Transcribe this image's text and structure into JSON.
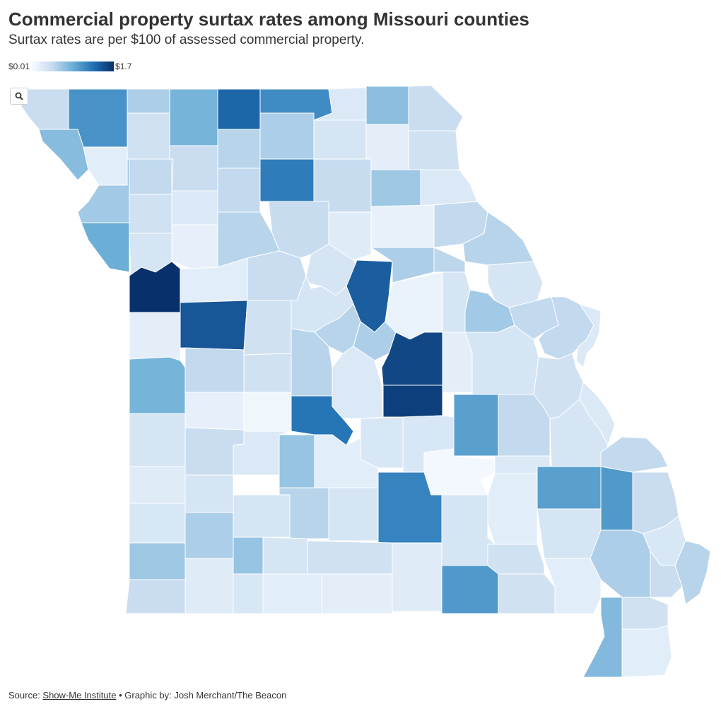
{
  "title": "Commercial property surtax rates among Missouri counties",
  "subtitle": "Surtax rates are per $100 of assessed commercial property.",
  "legend": {
    "min_label": "$0.01",
    "max_label": "$1.7",
    "min_value": 0.01,
    "max_value": 1.7,
    "color_low": "#f7fbff",
    "color_high": "#08306b"
  },
  "zoom_button": {
    "icon": "magnifier-icon"
  },
  "footer": {
    "source_prefix": "Source: ",
    "source_link": "Show-Me Institute",
    "separator": " • ",
    "credit": "Graphic by: Josh Merchant/The Beacon"
  },
  "chart_data": {
    "type": "choropleth",
    "region": "Missouri counties",
    "value_description": "Commercial surtax rate per $100 assessed value",
    "color_scale": [
      "#f7fbff",
      "#c6dbef",
      "#6baed6",
      "#2171b5",
      "#08306b"
    ],
    "domain": [
      0.01,
      1.7
    ],
    "counties": [
      {
        "value": 0.4
      },
      {
        "value": 1.05
      },
      {
        "value": 0.55
      },
      {
        "value": 0.8
      },
      {
        "value": 1.35
      },
      {
        "value": 1.1
      },
      {
        "value": 0.25
      },
      {
        "value": 0.7
      },
      {
        "value": 0.4
      },
      {
        "value": 0.72
      },
      {
        "value": 0.2
      },
      {
        "value": 0.35
      },
      {
        "value": 0.4
      },
      {
        "value": 0.5
      },
      {
        "value": 0.55
      },
      {
        "value": 0.3
      },
      {
        "value": 0.18
      },
      {
        "value": 0.35
      },
      {
        "value": 0.6
      },
      {
        "value": 0.45
      },
      {
        "value": 0.25
      },
      {
        "value": 0.45
      },
      {
        "value": 1.2
      },
      {
        "value": 0.42
      },
      {
        "value": 0.62
      },
      {
        "value": 0.25
      },
      {
        "value": 0.85
      },
      {
        "value": 0.35
      },
      {
        "value": 0.15
      },
      {
        "value": 0.5
      },
      {
        "value": 0.42
      },
      {
        "value": 0.22
      },
      {
        "value": 0.14
      },
      {
        "value": 0.45
      },
      {
        "value": 0.5
      },
      {
        "value": 0.3
      },
      {
        "value": 1.7
      },
      {
        "value": 0.2
      },
      {
        "value": 0.4
      },
      {
        "value": 0.3
      },
      {
        "value": 1.4
      },
      {
        "value": 0.55
      },
      {
        "value": 0.48
      },
      {
        "value": 0.3
      },
      {
        "value": 0.18
      },
      {
        "value": 1.45
      },
      {
        "value": 0.35
      },
      {
        "value": 0.3
      },
      {
        "value": 0.5
      },
      {
        "value": 0.55
      },
      {
        "value": 0.12
      },
      {
        "value": 0.3
      },
      {
        "value": 0.6
      },
      {
        "value": 0.45
      },
      {
        "value": 0.45
      },
      {
        "value": 0.25
      },
      {
        "value": 0.8
      },
      {
        "value": 0.45
      },
      {
        "value": 0.35
      },
      {
        "value": 0.5
      },
      {
        "value": 0.25
      },
      {
        "value": 1.6
      },
      {
        "value": 1.55
      },
      {
        "value": 0.18
      },
      {
        "value": 0.3
      },
      {
        "value": 0.35
      },
      {
        "value": 0.15
      },
      {
        "value": 0.08
      },
      {
        "value": 1.25
      },
      {
        "value": 0.3
      },
      {
        "value": 0.4
      },
      {
        "value": 0.25
      },
      {
        "value": 0.65
      },
      {
        "value": 0.2
      },
      {
        "value": 0.28
      },
      {
        "value": 0.28
      },
      {
        "value": 0.95
      },
      {
        "value": 0.45
      },
      {
        "value": 0.3
      },
      {
        "value": 0.25
      },
      {
        "value": 0.22
      },
      {
        "value": 0.3
      },
      {
        "value": 0.3
      },
      {
        "value": 0.5
      },
      {
        "value": 0.3
      },
      {
        "value": 1.15
      },
      {
        "value": 0.05
      },
      {
        "value": 0.25
      },
      {
        "value": 0.2
      },
      {
        "value": 0.95
      },
      {
        "value": 1.0
      },
      {
        "value": 0.45
      },
      {
        "value": 0.28
      },
      {
        "value": 0.55
      },
      {
        "value": 0.65
      },
      {
        "value": 0.3
      },
      {
        "value": 0.35
      },
      {
        "value": 0.22
      },
      {
        "value": 0.3
      },
      {
        "value": 0.35
      },
      {
        "value": 0.3
      },
      {
        "value": 0.4
      },
      {
        "value": 0.28
      },
      {
        "value": 0.62
      },
      {
        "value": 0.4
      },
      {
        "value": 0.22
      },
      {
        "value": 0.28
      },
      {
        "value": 0.2
      },
      {
        "value": 0.18
      },
      {
        "value": 1.0
      },
      {
        "value": 0.35
      },
      {
        "value": 0.2
      },
      {
        "value": 0.55
      },
      {
        "value": 0.4
      },
      {
        "value": 0.5
      },
      {
        "value": 0.75
      },
      {
        "value": 0.35
      },
      {
        "value": 0.2
      },
      {
        "value": 0.45
      },
      {
        "value": 0.3
      }
    ]
  }
}
